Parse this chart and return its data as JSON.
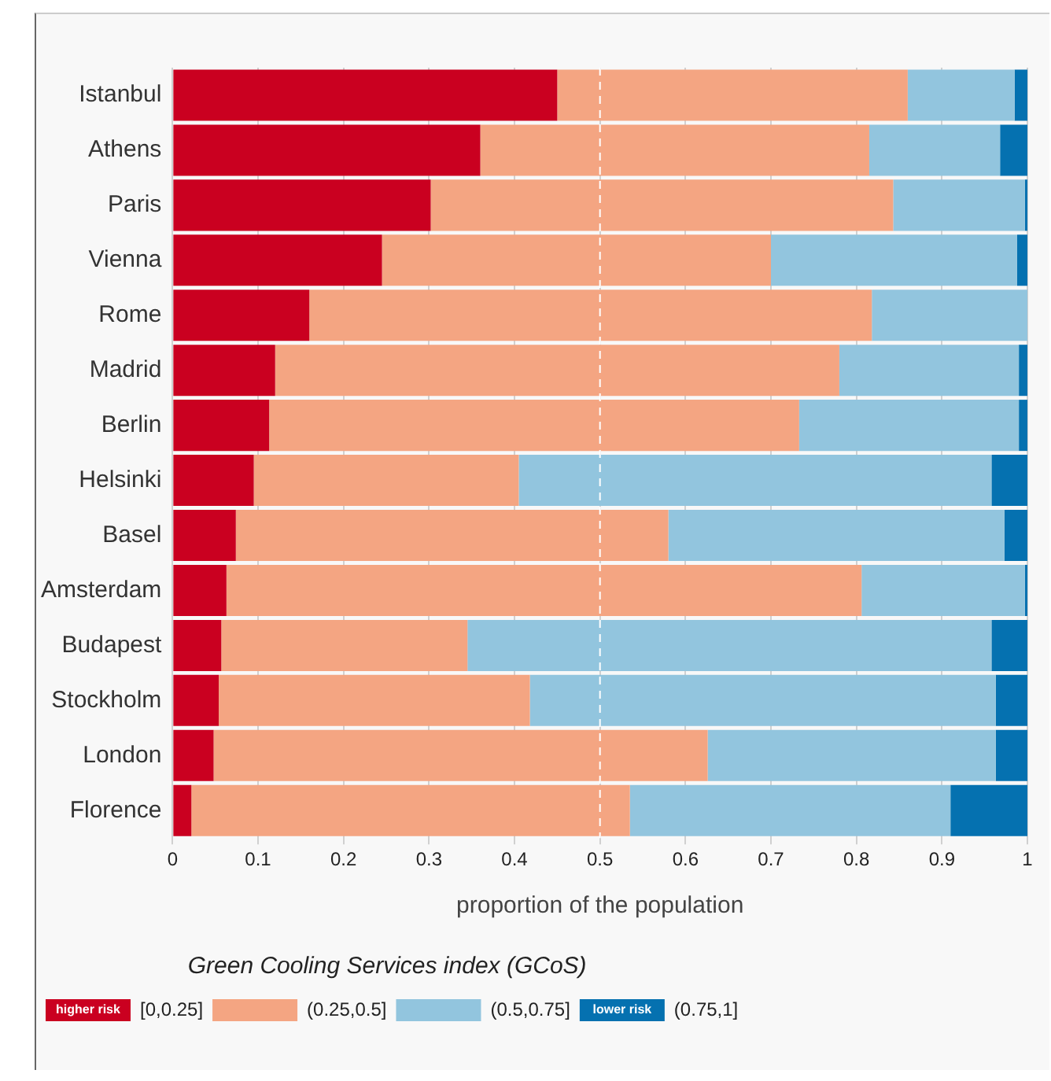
{
  "chart_data": {
    "type": "bar",
    "orientation": "horizontal",
    "stacked": true,
    "xlabel": "proportion of the population",
    "legend_title": "Green Cooling Services index (GCoS)",
    "categories": [
      "Istanbul",
      "Athens",
      "Paris",
      "Vienna",
      "Rome",
      "Madrid",
      "Berlin",
      "Helsinki",
      "Basel",
      "Amsterdam",
      "Budapest",
      "Stockholm",
      "London",
      "Florence"
    ],
    "series": [
      {
        "name": "[0,0.25]",
        "color": "#ca0020",
        "values": [
          0.45,
          0.36,
          0.302,
          0.245,
          0.16,
          0.12,
          0.113,
          0.095,
          0.074,
          0.063,
          0.057,
          0.054,
          0.048,
          0.022
        ]
      },
      {
        "name": "(0.25,0.5]",
        "color": "#f4a582",
        "values": [
          0.41,
          0.455,
          0.541,
          0.455,
          0.658,
          0.66,
          0.62,
          0.31,
          0.506,
          0.743,
          0.288,
          0.364,
          0.578,
          0.513
        ]
      },
      {
        "name": "(0.5,0.75]",
        "color": "#92c5de",
        "values": [
          0.125,
          0.153,
          0.154,
          0.288,
          0.182,
          0.21,
          0.257,
          0.553,
          0.393,
          0.191,
          0.613,
          0.545,
          0.337,
          0.375
        ]
      },
      {
        "name": "(0.75,1]",
        "color": "#0571b0",
        "values": [
          0.015,
          0.032,
          0.003,
          0.012,
          0,
          0.01,
          0.01,
          0.042,
          0.027,
          0.003,
          0.042,
          0.037,
          0.037,
          0.09
        ]
      }
    ],
    "xlim": [
      0,
      1
    ],
    "xticks": [
      0,
      0.1,
      0.2,
      0.3,
      0.4,
      0.5,
      0.6,
      0.7,
      0.8,
      0.9,
      1
    ],
    "ref_lines": [
      {
        "axis": "x",
        "value": 0.5,
        "color": "#ffffff",
        "line_style": "dashed"
      }
    ],
    "annotations": [
      "higher risk",
      "lower risk"
    ],
    "grid": "x",
    "legend": "bottom"
  }
}
